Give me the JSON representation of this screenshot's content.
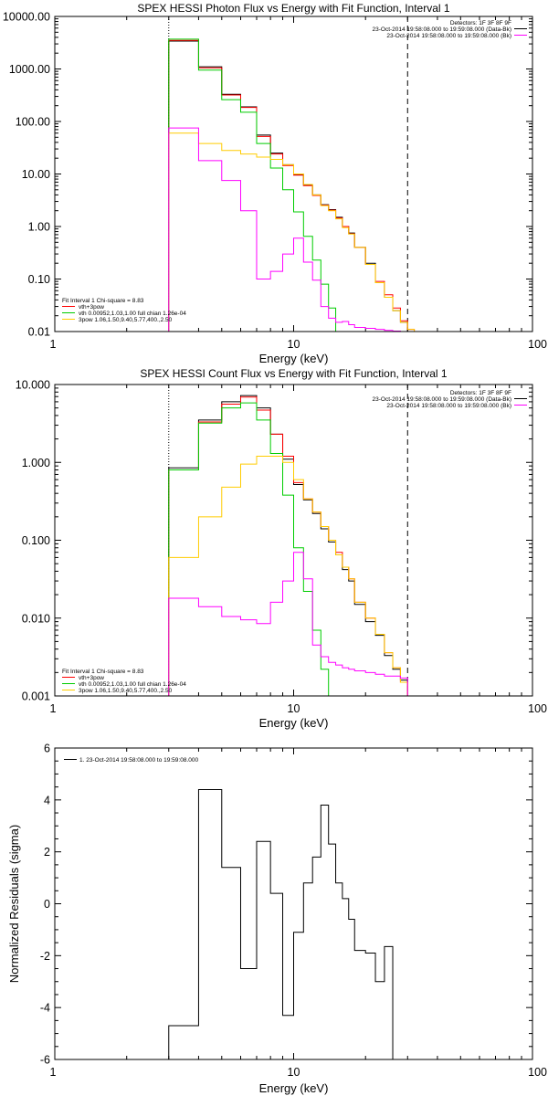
{
  "chart_data": [
    {
      "type": "line",
      "title": "SPEX HESSI Photon Flux vs Energy with Fit Function, Interval 1",
      "xlabel": "Energy (keV)",
      "ylabel": "",
      "xscale": "log",
      "yscale": "log",
      "xlim": [
        1,
        100
      ],
      "ylim": [
        0.01,
        10000
      ],
      "xticklabels": [
        "1",
        "10",
        "100"
      ],
      "yticks": [
        0.01,
        0.1,
        1,
        10,
        100,
        1000,
        10000
      ],
      "yticklabels": [
        "0.01",
        "0.10",
        "1.00",
        "10.00",
        "100.00",
        "1000.00",
        "10000.00"
      ],
      "vlines": [
        {
          "x": 3,
          "style": "dotted"
        },
        {
          "x": 30,
          "style": "dashed"
        }
      ],
      "legend_top": [
        "Detectors: 1F 3F 8F 9F",
        "23-Oct-2014 19:58:08.000 to 19:59:08.000 (Data-Bk)",
        "23-Oct-2014 19:58:08.000 to 19:59:08.000 (Bk)"
      ],
      "legend_top_colors": [
        "",
        "#000000",
        "#ff00ff"
      ],
      "legend_bottom": [
        "Fit Interval 1    Chi-square = 8.83",
        "vth+3pow",
        "vth 0.00952,1.03,1.00  full chian 1.26e-04",
        "3pow 1.06,1.50,9.40,5.77,400.,2.50"
      ],
      "legend_bottom_colors": [
        "",
        "#ff0000",
        "#00cc00",
        "#ffcc00"
      ],
      "edges": [
        3,
        3.5,
        4,
        5,
        6,
        7,
        8,
        9,
        10,
        11,
        12,
        13,
        14,
        15,
        16,
        17,
        18,
        20,
        22,
        24,
        26,
        28,
        30,
        32,
        35
      ],
      "series": [
        {
          "name": "23-Oct-2014 19:58:08.000 to 19:59:08.000 (Data-Bk)",
          "color": "#000000",
          "values": [
            3400,
            3400,
            1100,
            330,
            190,
            55,
            25,
            15,
            9.8,
            6.1,
            4.0,
            2.6,
            2.1,
            1.5,
            1.0,
            0.75,
            0.4,
            0.2,
            0.085,
            0.045,
            0.025,
            0.015,
            null,
            null
          ]
        },
        {
          "name": "vth+3pow",
          "color": "#ff0000",
          "values": [
            3500,
            3500,
            1050,
            320,
            185,
            52,
            24,
            14.5,
            9.5,
            6.0,
            3.9,
            2.55,
            2.05,
            1.45,
            1.0,
            0.73,
            0.4,
            0.19,
            0.09,
            0.05,
            0.028,
            0.016,
            0.011,
            null
          ]
        },
        {
          "name": "vth",
          "color": "#00cc00",
          "values": [
            3700,
            3700,
            950,
            260,
            150,
            38,
            13,
            5.0,
            1.9,
            0.65,
            0.23,
            0.08,
            0.028,
            0.009,
            null,
            null,
            null,
            null,
            null,
            null,
            null,
            null,
            null,
            null
          ]
        },
        {
          "name": "3pow",
          "color": "#ffcc00",
          "values": [
            60,
            60,
            38,
            28,
            24,
            21,
            19,
            15,
            10,
            6.3,
            4.0,
            2.5,
            2.0,
            1.4,
            0.95,
            0.72,
            0.4,
            0.19,
            0.085,
            0.045,
            0.025,
            0.015,
            0.011,
            0.0085
          ]
        },
        {
          "name": "23-Oct-2014 19:58:08.000 to 19:59:08.000 (Bk)",
          "color": "#ff00ff",
          "values": [
            75,
            75,
            18,
            7.5,
            2.0,
            0.1,
            0.14,
            0.3,
            0.6,
            0.21,
            0.095,
            0.03,
            0.018,
            0.015,
            0.0155,
            0.0135,
            0.012,
            0.0115,
            0.011,
            0.0105,
            0.0102,
            null,
            null,
            null
          ]
        }
      ]
    },
    {
      "type": "line",
      "title": "SPEX HESSI Count Flux vs Energy with Fit Function, Interval 1",
      "xlabel": "Energy (keV)",
      "ylabel": "",
      "xscale": "log",
      "yscale": "log",
      "xlim": [
        1,
        100
      ],
      "ylim": [
        0.001,
        10
      ],
      "xticklabels": [
        "1",
        "10",
        "100"
      ],
      "yticks": [
        0.001,
        0.01,
        0.1,
        1,
        10
      ],
      "yticklabels": [
        "0.001",
        "0.010",
        "0.100",
        "1.000",
        "10.000"
      ],
      "vlines": [
        {
          "x": 3,
          "style": "dotted"
        },
        {
          "x": 30,
          "style": "dashed"
        }
      ],
      "legend_top": [
        "Detectors: 1F 3F 8F 9F",
        "23-Oct-2014 19:58:08.000 to 19:59:08.000 (Data-Bk)",
        "23-Oct-2014 19:58:08.000 to 19:59:08.000 (Bk)"
      ],
      "legend_top_colors": [
        "",
        "#000000",
        "#ff00ff"
      ],
      "legend_bottom": [
        "Fit Interval 1    Chi-square = 8.83",
        "vth+3pow",
        "vth 0.00952,1.03,1.00  full chian 1.26e-04",
        "3pow 1.06,1.50,9.40,5.77,400.,2.50"
      ],
      "legend_bottom_colors": [
        "",
        "#ff0000",
        "#00cc00",
        "#ffcc00"
      ],
      "edges": [
        3,
        4,
        5,
        6,
        7,
        8,
        9,
        10,
        11,
        12,
        13,
        14,
        15,
        16,
        17,
        18,
        20,
        22,
        24,
        26,
        28,
        30,
        32,
        35
      ],
      "series": [
        {
          "name": "23-Oct-2014 19:58:08.000 to 19:59:08.000 (Data-Bk)",
          "color": "#000000",
          "values": [
            0.85,
            3.5,
            6.0,
            7.2,
            5.0,
            2.3,
            1.1,
            0.52,
            0.33,
            0.22,
            0.14,
            0.095,
            0.065,
            0.042,
            0.03,
            0.015,
            0.009,
            0.006,
            0.0033,
            0.0022,
            0.0016,
            null,
            null
          ]
        },
        {
          "name": "vth+3pow",
          "color": "#ff0000",
          "values": [
            0.8,
            3.3,
            5.6,
            6.9,
            4.7,
            2.3,
            1.2,
            0.55,
            0.34,
            0.23,
            0.15,
            0.1,
            0.07,
            0.045,
            0.032,
            0.016,
            0.01,
            0.0062,
            0.0036,
            0.0023,
            0.0015,
            0.001,
            null
          ]
        },
        {
          "name": "vth",
          "color": "#00cc00",
          "values": [
            0.8,
            3.2,
            5.0,
            5.8,
            3.5,
            1.3,
            0.38,
            0.08,
            0.022,
            0.007,
            0.0022,
            0.0009,
            null,
            null,
            null,
            null,
            null,
            null,
            null,
            null,
            null,
            null,
            null
          ]
        },
        {
          "name": "3pow",
          "color": "#ffcc00",
          "values": [
            0.06,
            0.2,
            0.48,
            0.95,
            1.2,
            1.2,
            1.0,
            0.6,
            0.34,
            0.23,
            0.15,
            0.1,
            0.065,
            0.045,
            0.032,
            0.016,
            0.01,
            0.0062,
            0.0036,
            0.0023,
            0.0015,
            0.001,
            0.0007
          ]
        },
        {
          "name": "23-Oct-2014 19:58:08.000 to 19:59:08.000 (Bk)",
          "color": "#ff00ff",
          "values": [
            0.018,
            0.014,
            0.0105,
            0.0095,
            0.0085,
            0.016,
            0.03,
            0.07,
            0.032,
            0.0045,
            0.0032,
            0.0027,
            0.0025,
            0.0023,
            0.0022,
            0.0021,
            0.002,
            0.0019,
            0.0018,
            0.0018,
            0.0017,
            null,
            null
          ]
        }
      ]
    },
    {
      "type": "line",
      "title": "",
      "xlabel": "Energy (keV)",
      "ylabel": "Normalized Residuals (sigma)",
      "xscale": "log",
      "yscale": "linear",
      "xlim": [
        1,
        100
      ],
      "ylim": [
        -6,
        6
      ],
      "xticklabels": [
        "1",
        "10",
        "100"
      ],
      "yticks": [
        -6,
        -4,
        -2,
        0,
        2,
        4,
        6
      ],
      "yticklabels": [
        "-6",
        "-4",
        "-2",
        "0",
        "2",
        "4",
        "6"
      ],
      "vlines": [],
      "legend_top": [
        "1. 23-Oct-2014 19:58:08.000 to 19:59:08.000"
      ],
      "legend_top_colors": [
        "#000000"
      ],
      "legend_bottom": [],
      "legend_bottom_colors": [],
      "edges": [
        3,
        4,
        5,
        6,
        7,
        8,
        9,
        10,
        11,
        12,
        13,
        14,
        15,
        16,
        17,
        18,
        20,
        22,
        24,
        26,
        28,
        30
      ],
      "series": [
        {
          "name": "1. 23-Oct-2014 19:58:08.000 to 19:59:08.000",
          "color": "#000000",
          "values": [
            -4.7,
            4.4,
            1.4,
            -2.5,
            2.4,
            0.4,
            -4.3,
            -1.1,
            0.8,
            1.8,
            3.8,
            2.3,
            0.8,
            0.2,
            -0.6,
            -1.8,
            -1.9,
            -3.0,
            -1.65,
            null,
            null
          ]
        }
      ]
    }
  ]
}
